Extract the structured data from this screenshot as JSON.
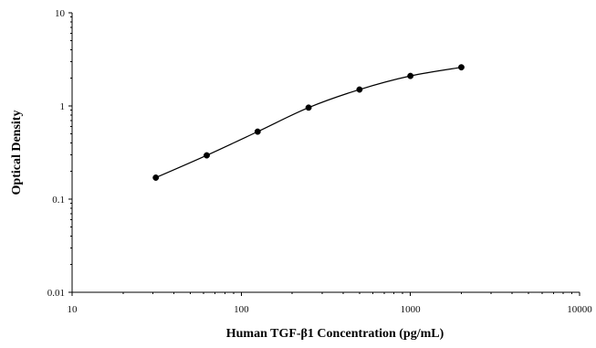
{
  "chart_data": {
    "type": "scatter",
    "title": "",
    "xlabel": "Human TGF-β1 Concentration  (pg/mL)",
    "ylabel": "Optical Density",
    "xscale": "log",
    "yscale": "log",
    "xlim": [
      10,
      10000
    ],
    "ylim": [
      0.01,
      10
    ],
    "x_ticks": [
      "10",
      "100",
      "1000",
      "10000"
    ],
    "y_ticks": [
      "0.01",
      "0.1",
      "1",
      "10"
    ],
    "grid": false,
    "legend": "none",
    "series": [
      {
        "x": [
          31.25,
          62.5,
          125,
          250,
          500,
          1000,
          2000
        ],
        "y": [
          0.17,
          0.295,
          0.53,
          0.96,
          1.5,
          2.1,
          2.6
        ]
      }
    ],
    "curve_fit": "smooth line through points",
    "colors": {
      "points": "#000000",
      "line": "#000000",
      "axes": "#000000"
    }
  }
}
